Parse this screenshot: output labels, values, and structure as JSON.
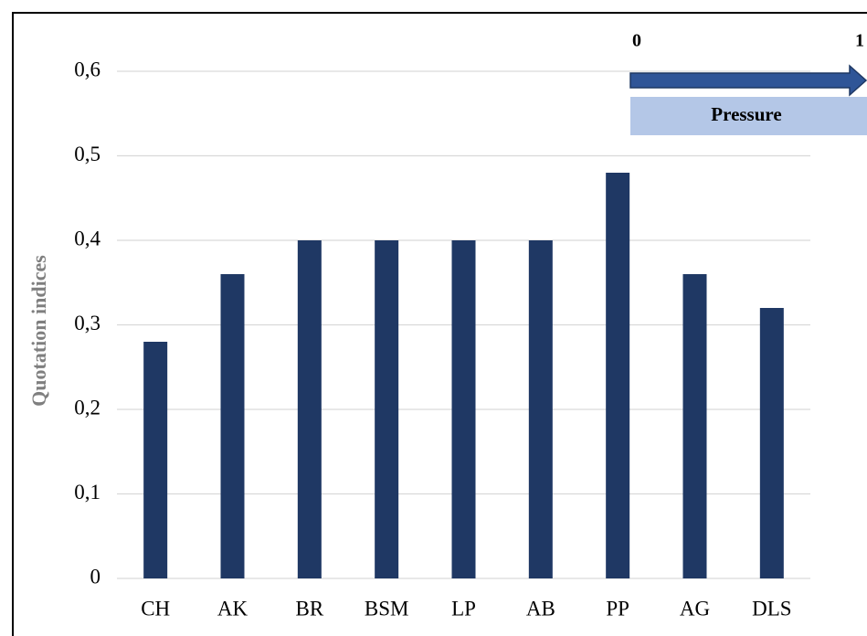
{
  "chart_data": {
    "type": "bar",
    "y_label": "Quotation indices",
    "categories": [
      "CH",
      "AK",
      "BR",
      "BSM",
      "LP",
      "AB",
      "PP",
      "AG",
      "DLS"
    ],
    "values": [
      0.28,
      0.36,
      0.4,
      0.4,
      0.4,
      0.4,
      0.48,
      0.36,
      0.32
    ],
    "color": "#1f3864",
    "ylim": [
      0,
      0.6
    ],
    "yticks": [
      0,
      {
        "value": 0.1,
        "label": "0,1"
      },
      {
        "value": 0.2,
        "label": "0,2"
      },
      {
        "value": 0.3,
        "label": "0,3"
      },
      {
        "value": 0.4,
        "label": "0,4"
      },
      {
        "value": 0.5,
        "label": "0,5"
      },
      {
        "value": 0.6,
        "label": "0,6"
      }
    ],
    "grid": true,
    "annotation": {
      "scale_start": "0",
      "scale_end": "1",
      "label": "Pressure"
    }
  }
}
